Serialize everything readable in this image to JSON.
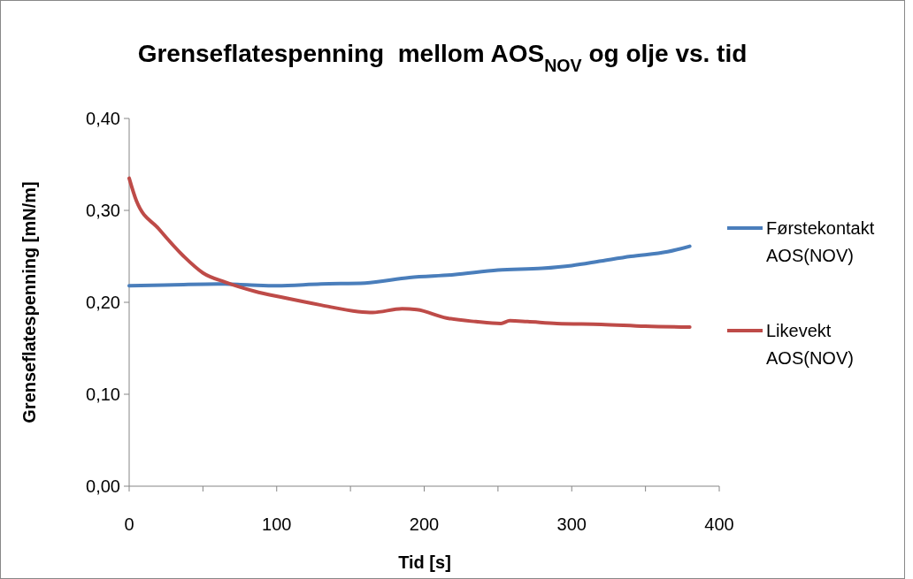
{
  "chart_data": {
    "type": "line",
    "title": "Grenseflatespenning  mellom AOS$_{NOV}$ og olje vs. tid",
    "xlabel": "Tid [s]",
    "ylabel": "Grenseflatespenning [mN/m]",
    "xlim": [
      0,
      400
    ],
    "xticks": [
      0,
      {
        "value": 50,
        "label": null
      },
      100,
      {
        "value": 150,
        "label": null
      },
      200,
      {
        "value": 250,
        "label": null
      },
      300,
      {
        "value": 350,
        "label": null
      },
      400
    ],
    "ylim": [
      0,
      0.4
    ],
    "yticks": [
      {
        "value": 0,
        "label": "0,00"
      },
      {
        "value": 0.1,
        "label": "0,10"
      },
      {
        "value": 0.2,
        "label": "0,20"
      },
      {
        "value": 0.3,
        "label": "0,30"
      },
      {
        "value": 0.4,
        "label": "0,40"
      }
    ],
    "grid": false,
    "legend": "right",
    "marker": "none",
    "line_style": "solid",
    "series": [
      {
        "name": "Førstekontakt AOS(NOV)",
        "color": "#4a7ebb",
        "x": [
          0,
          30,
          60,
          80,
          100,
          130,
          160,
          190,
          220,
          250,
          280,
          300,
          320,
          340,
          365,
          380
        ],
        "values": [
          0.218,
          0.219,
          0.22,
          0.219,
          0.218,
          0.22,
          0.221,
          0.227,
          0.23,
          0.235,
          0.237,
          0.24,
          0.245,
          0.25,
          0.255,
          0.261
        ]
      },
      {
        "name": "Likevekt AOS(NOV)",
        "color": "#be4b48",
        "x": [
          0,
          5,
          20,
          37,
          50,
          65,
          85,
          105,
          130,
          155,
          165,
          185,
          195,
          215,
          235,
          252,
          258,
          270,
          290,
          320,
          350,
          380
        ],
        "values": [
          0.335,
          0.31,
          0.28,
          0.25,
          0.232,
          0.222,
          0.212,
          0.205,
          0.197,
          0.19,
          0.189,
          0.193,
          0.192,
          0.183,
          0.179,
          0.177,
          0.18,
          0.179,
          0.177,
          0.176,
          0.174,
          0.173
        ]
      }
    ]
  }
}
